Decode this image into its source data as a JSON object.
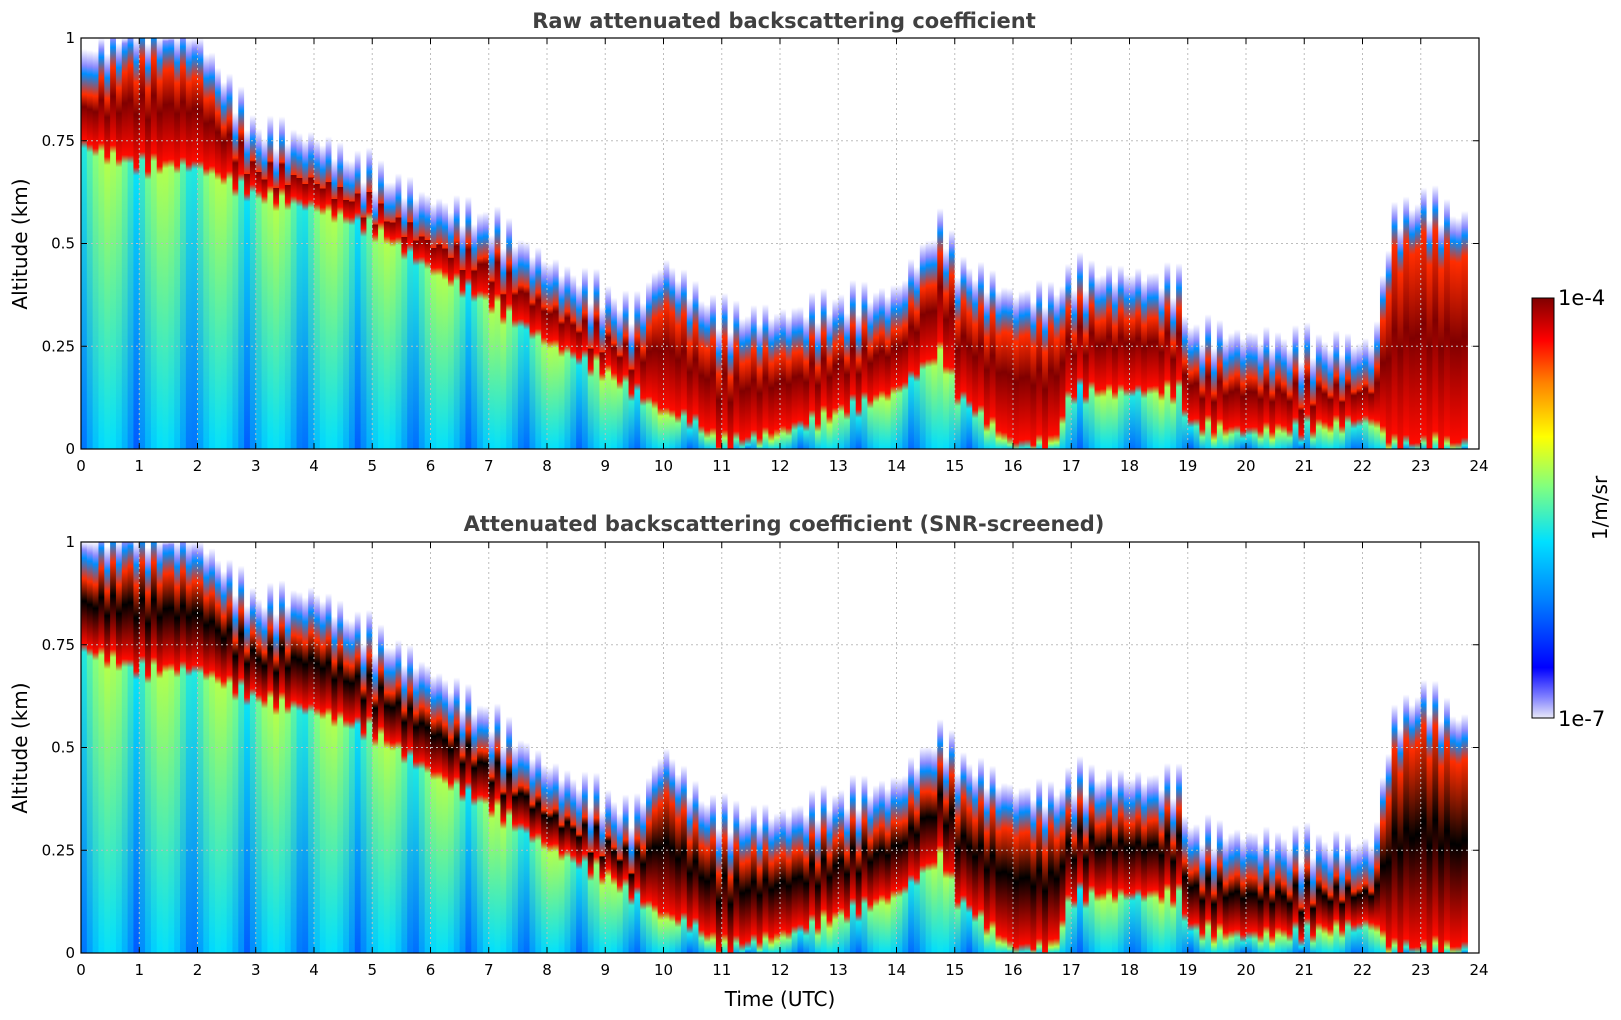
{
  "chart_data": [
    {
      "type": "heatmap",
      "title": "Raw attenuated backscattering coefficient",
      "xlabel": "",
      "ylabel": "Altitude (km)",
      "xlim": [
        0,
        24
      ],
      "ylim": [
        0,
        1
      ],
      "x_ticks": [
        "0",
        "1",
        "2",
        "3",
        "4",
        "5",
        "6",
        "7",
        "8",
        "9",
        "10",
        "11",
        "12",
        "13",
        "14",
        "15",
        "16",
        "17",
        "18",
        "19",
        "20",
        "21",
        "22",
        "23",
        "24"
      ],
      "y_ticks": [
        "0",
        "0.25",
        "0.5",
        "0.75",
        "1"
      ],
      "grid": true,
      "x": [
        0,
        1,
        2,
        3,
        4,
        5,
        6,
        7,
        8,
        9,
        9.5,
        10,
        10.5,
        11,
        12,
        13,
        14,
        14.8,
        15,
        16,
        16.7,
        17,
        18,
        18.9,
        19,
        20,
        21,
        22.2,
        22.5,
        23,
        23.8
      ],
      "layer_top_km": [
        0.9,
        0.98,
        0.95,
        0.72,
        0.7,
        0.62,
        0.55,
        0.5,
        0.4,
        0.32,
        0.28,
        0.4,
        0.33,
        0.27,
        0.27,
        0.3,
        0.33,
        0.5,
        0.4,
        0.32,
        0.32,
        0.37,
        0.37,
        0.35,
        0.23,
        0.22,
        0.2,
        0.2,
        0.5,
        0.55,
        0.5
      ],
      "layer_bottom_km": [
        0.75,
        0.7,
        0.7,
        0.63,
        0.6,
        0.55,
        0.45,
        0.37,
        0.27,
        0.2,
        0.15,
        0.1,
        0.08,
        0.02,
        0.05,
        0.1,
        0.15,
        0.25,
        0.15,
        0.02,
        0.02,
        0.15,
        0.15,
        0.15,
        0.07,
        0.05,
        0.06,
        0.08,
        0.02,
        0.02,
        0.02
      ],
      "colorbar": {
        "label": "1/m/sr",
        "min": "1e-7",
        "max": "1e-4",
        "scale": "log",
        "colormap": "jet"
      }
    },
    {
      "type": "heatmap",
      "title": "Attenuated backscattering coefficient (SNR-screened)",
      "xlabel": "Time (UTC)",
      "ylabel": "Altitude (km)",
      "xlim": [
        0,
        24
      ],
      "ylim": [
        0,
        1
      ],
      "x_ticks": [
        "0",
        "1",
        "2",
        "3",
        "4",
        "5",
        "6",
        "7",
        "8",
        "9",
        "10",
        "11",
        "12",
        "13",
        "14",
        "15",
        "16",
        "17",
        "18",
        "19",
        "20",
        "21",
        "22",
        "23",
        "24"
      ],
      "y_ticks": [
        "0",
        "0.25",
        "0.5",
        "0.75",
        "1"
      ],
      "grid": true,
      "x": [
        0,
        1,
        2,
        3,
        4,
        5,
        6,
        7,
        8,
        9,
        9.5,
        10,
        10.5,
        11,
        12,
        13,
        14,
        14.8,
        15,
        16,
        16.7,
        17,
        18,
        18.9,
        19,
        20,
        21,
        22.2,
        22.5,
        23,
        23.8
      ],
      "layer_top_km": [
        0.95,
        0.98,
        0.95,
        0.8,
        0.82,
        0.72,
        0.63,
        0.52,
        0.4,
        0.32,
        0.28,
        0.44,
        0.34,
        0.28,
        0.28,
        0.32,
        0.36,
        0.48,
        0.42,
        0.34,
        0.33,
        0.37,
        0.37,
        0.36,
        0.24,
        0.23,
        0.21,
        0.21,
        0.5,
        0.58,
        0.5
      ],
      "layer_bottom_km": [
        0.75,
        0.7,
        0.7,
        0.63,
        0.6,
        0.55,
        0.45,
        0.37,
        0.27,
        0.2,
        0.15,
        0.1,
        0.08,
        0.02,
        0.05,
        0.1,
        0.15,
        0.25,
        0.15,
        0.02,
        0.02,
        0.15,
        0.15,
        0.15,
        0.07,
        0.05,
        0.06,
        0.08,
        0.02,
        0.02,
        0.02
      ],
      "saturated_color": "#000000",
      "colorbar": {
        "label": "1/m/sr",
        "min": "1e-7",
        "max": "1e-4",
        "scale": "log",
        "colormap": "jet"
      }
    }
  ],
  "colors": {
    "title_text": "#404040",
    "grid": "#bdbdbd",
    "axis": "#000000",
    "colormap_stops": [
      "#e8e8f8",
      "#7f7fff",
      "#0000ff",
      "#0080ff",
      "#00e0ff",
      "#80ff80",
      "#ffff00",
      "#ff8000",
      "#ff0000",
      "#800000"
    ]
  }
}
